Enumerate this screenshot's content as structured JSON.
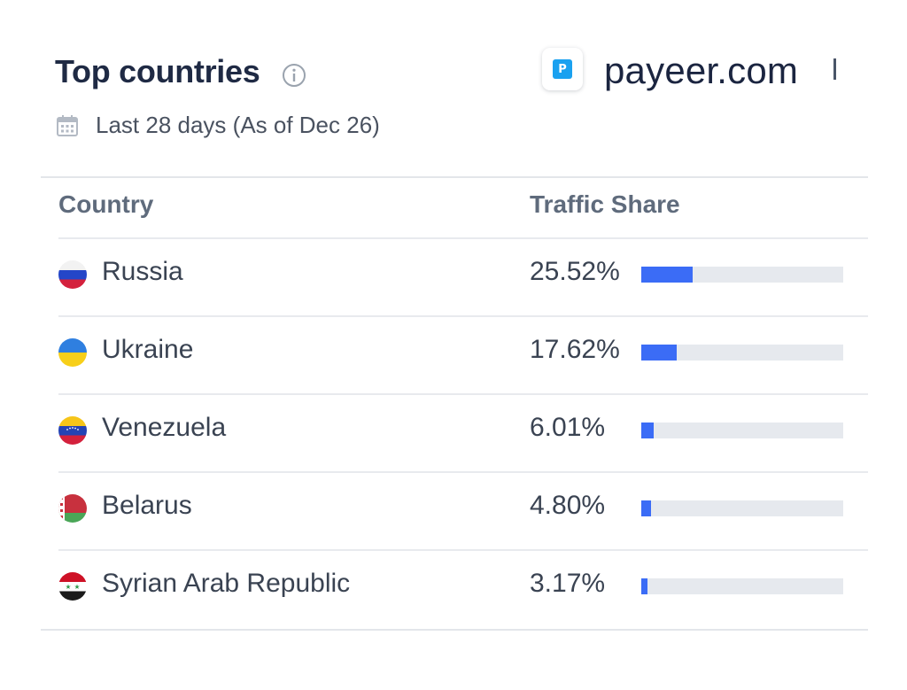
{
  "header": {
    "title": "Top countries",
    "period": "Last 28 days (As of Dec 26)"
  },
  "site": {
    "name": "payeer.com",
    "logo_letter": "P",
    "logo_color": "#1aa1f0"
  },
  "table": {
    "columns": [
      "Country",
      "Traffic Share"
    ],
    "rows": [
      {
        "country": "Russia",
        "share": "25.52%",
        "share_value": 25.52,
        "flag": "russia-flag-icon"
      },
      {
        "country": "Ukraine",
        "share": "17.62%",
        "share_value": 17.62,
        "flag": "ukraine-flag-icon"
      },
      {
        "country": "Venezuela",
        "share": "6.01%",
        "share_value": 6.01,
        "flag": "venezuela-flag-icon"
      },
      {
        "country": "Belarus",
        "share": "4.80%",
        "share_value": 4.8,
        "flag": "belarus-flag-icon"
      },
      {
        "country": "Syrian Arab Republic",
        "share": "3.17%",
        "share_value": 3.17,
        "flag": "syria-flag-icon"
      }
    ]
  },
  "colors": {
    "bar_fill": "#3b6cf6",
    "bar_track": "#e6e9ee",
    "title": "#1f2a44"
  }
}
